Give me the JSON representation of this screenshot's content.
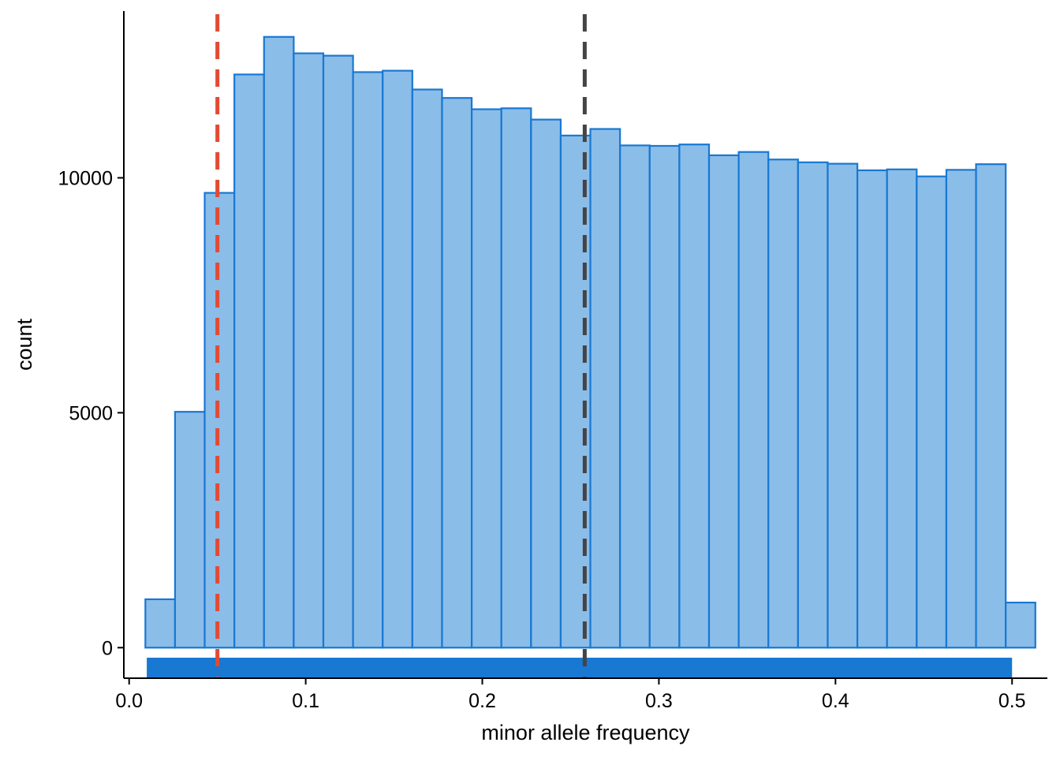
{
  "chart_data": {
    "type": "bar",
    "subtype": "histogram",
    "title": "",
    "xlabel": "minor allele frequency",
    "ylabel": "count",
    "xlim": [
      -0.003,
      0.52
    ],
    "ylim": [
      -650,
      13550
    ],
    "x_ticks": [
      0.0,
      0.1,
      0.2,
      0.3,
      0.4,
      0.5
    ],
    "x_tick_labels": [
      "0.0",
      "0.1",
      "0.2",
      "0.3",
      "0.4",
      "0.5"
    ],
    "y_ticks": [
      0,
      5000,
      10000
    ],
    "y_tick_labels": [
      "0",
      "5000",
      "10000"
    ],
    "bin_width": 0.0168,
    "bin_edges": [
      0.0092,
      0.026,
      0.0428,
      0.0596,
      0.0764,
      0.0932,
      0.11,
      0.1268,
      0.1436,
      0.1604,
      0.1772,
      0.194,
      0.2108,
      0.2276,
      0.2444,
      0.2612,
      0.278,
      0.2948,
      0.3116,
      0.3284,
      0.3452,
      0.362,
      0.3788,
      0.3956,
      0.4124,
      0.4292,
      0.446,
      0.4628,
      0.4796,
      0.4964,
      0.5132
    ],
    "values": [
      1030,
      5020,
      9680,
      12200,
      13000,
      12650,
      12600,
      12250,
      12280,
      11880,
      11700,
      11460,
      11480,
      11240,
      10900,
      11040,
      10690,
      10680,
      10710,
      10480,
      10550,
      10390,
      10330,
      10300,
      10160,
      10180,
      10030,
      10170,
      10290,
      960
    ],
    "rug": {
      "from": 0.01,
      "to": 0.5,
      "color": "#1878D2"
    },
    "reference_lines": [
      {
        "x": 0.05,
        "color": "#E34A33",
        "style": "dashed"
      },
      {
        "x": 0.258,
        "color": "#444444",
        "style": "dashed"
      }
    ],
    "bar_fill": "#8BBDE9",
    "bar_stroke": "#1878D2",
    "grid": false,
    "legend": "none"
  }
}
